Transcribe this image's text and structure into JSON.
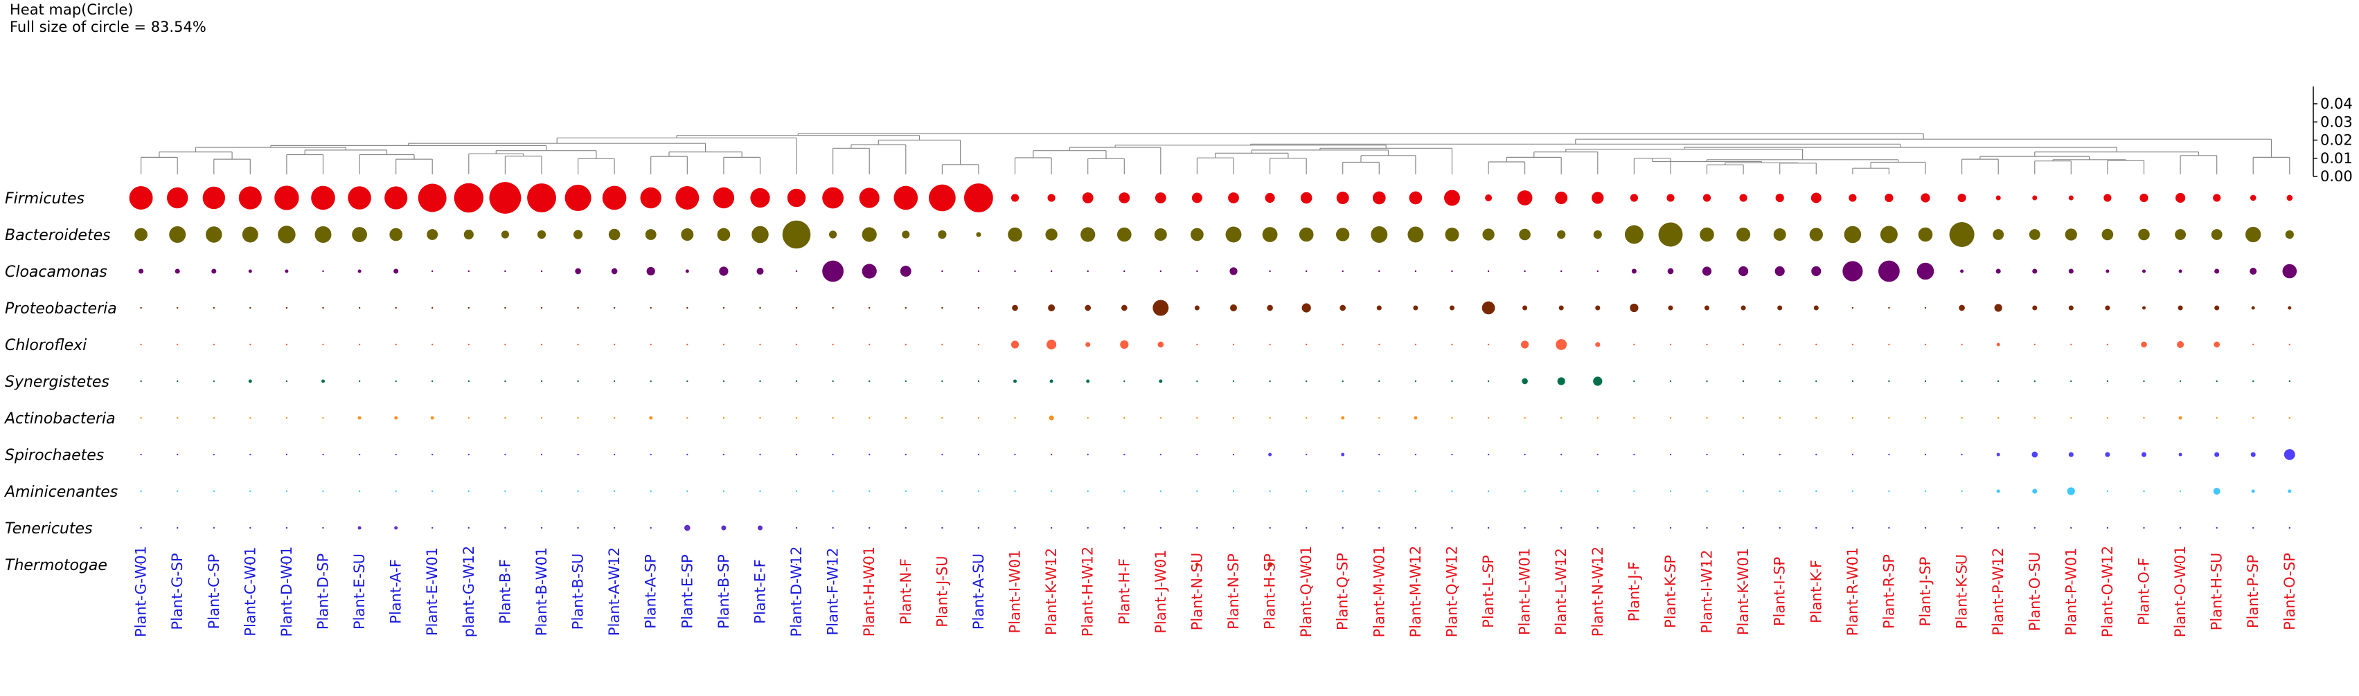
{
  "header": {
    "title": "Heat map(Circle)",
    "subtitle": "Full size of circle = 83.54%"
  },
  "chart_data": {
    "type": "heatmap",
    "encoding": "circle area proportional to relative abundance",
    "tree_axis": {
      "ticks": [
        "0.04",
        "0.03",
        "0.02",
        "0.01",
        "0.00"
      ],
      "values": [
        0.04,
        0.03,
        0.02,
        0.01,
        0.0
      ]
    },
    "phyla": [
      "Firmicutes",
      "Bacteroidetes",
      "Cloacamonas",
      "Proteobacteria",
      "Chloroflexi",
      "Synergistetes",
      "Actinobacteria",
      "Spirochaetes",
      "Aminicenantes",
      "Tenericutes",
      "Thermotogae"
    ],
    "phylum_colors": [
      "#e8000b",
      "#6b6200",
      "#6b006e",
      "#7a2800",
      "#ff6040",
      "#00704a",
      "#ff9020",
      "#5040ff",
      "#40c8ff",
      "#6030c8",
      "#c83010"
    ],
    "samples": [
      "Plant-G-W01",
      "Plant-G-SP",
      "Plant-C-SP",
      "Plant-C-W01",
      "Plant-D-W01",
      "Plant-D-SP",
      "Plant-E-SU",
      "Plant-A-F",
      "Plant-E-W01",
      "plant-G-W12",
      "Plant-B-F",
      "Plant-B-W01",
      "Plant-B-SU",
      "Plant-A-W12",
      "Plant-A-SP",
      "Plant-E-SP",
      "Plant-B-SP",
      "Plant-E-F",
      "Plant-D-W12",
      "Plant-F-W12",
      "Plant-H-W01",
      "Plant-N-F",
      "Plant-J-SU",
      "Plant-A-SU",
      "Plant-I-W01",
      "Plant-K-W12",
      "Plant-H-W12",
      "Plant-H-F",
      "Plant-J-W01",
      "Plant-N-SU",
      "Plant-N-SP",
      "Plant-H-SP",
      "Plant-Q-W01",
      "Plant-Q-SP",
      "Plant-M-W01",
      "Plant-M-W12",
      "Plant-Q-W12",
      "Plant-L-SP",
      "Plant-L-W01",
      "Plant-L-W12",
      "Plant-N-W12",
      "Plant-J-F",
      "Plant-K-SP",
      "Plant-I-W12",
      "Plant-K-W01",
      "Plant-I-SP",
      "Plant-K-F",
      "Plant-R-W01",
      "Plant-R-SP",
      "Plant-J-SP",
      "Plant-K-SU",
      "Plant-P-W12",
      "Plant-O-SU",
      "Plant-P-W01",
      "Plant-O-W12",
      "Plant-O-F",
      "Plant-O-W01",
      "Plant-H-SU",
      "Plant-P-SP",
      "Plant-O-SP"
    ],
    "sample_groups": [
      "blue",
      "blue",
      "blue",
      "blue",
      "blue",
      "blue",
      "blue",
      "blue",
      "blue",
      "blue",
      "blue",
      "blue",
      "blue",
      "blue",
      "blue",
      "blue",
      "blue",
      "blue",
      "blue",
      "blue",
      "red",
      "red",
      "red",
      "blue",
      "red",
      "red",
      "red",
      "red",
      "red",
      "red",
      "red",
      "red",
      "red",
      "red",
      "red",
      "red",
      "red",
      "red",
      "red",
      "red",
      "red",
      "red",
      "red",
      "red",
      "red",
      "red",
      "red",
      "red",
      "red",
      "red",
      "red",
      "red",
      "red",
      "red",
      "red",
      "red",
      "red",
      "red",
      "red",
      "red"
    ],
    "group_colors": {
      "blue": "#1a1adc",
      "red": "#e6141e"
    },
    "values": [
      [
        46,
        37,
        42,
        44,
        50,
        48,
        45,
        44,
        67,
        72,
        84,
        70,
        58,
        48,
        37,
        46,
        37,
        32,
        28,
        38,
        34,
        48,
        60,
        70,
        5,
        5,
        10,
        10,
        10,
        9,
        10,
        8,
        11,
        13,
        14,
        14,
        21,
        4,
        19,
        13,
        12,
        5,
        5,
        5,
        5,
        6,
        9,
        5,
        6,
        7,
        6,
        2,
        2,
        2,
        5,
        6,
        8,
        5,
        3,
        3
      ],
      [
        14,
        23,
        22,
        21,
        26,
        23,
        19,
        14,
        10,
        8,
        5,
        6,
        7,
        11,
        10,
        13,
        14,
        24,
        66,
        5,
        18,
        5,
        6,
        2,
        17,
        12,
        18,
        17,
        13,
        14,
        21,
        19,
        17,
        15,
        23,
        21,
        16,
        12,
        11,
        6,
        6,
        29,
        49,
        17,
        16,
        13,
        15,
        24,
        25,
        17,
        52,
        10,
        10,
        12,
        11,
        11,
        10,
        10,
        20,
        6
      ],
      [
        2,
        2,
        2,
        1,
        1,
        0,
        1,
        2,
        0,
        0,
        0,
        0,
        3,
        3,
        6,
        1,
        7,
        4,
        0,
        38,
        18,
        10,
        0,
        0,
        0,
        0,
        0,
        0,
        0,
        0,
        5,
        0,
        0,
        0,
        0,
        0,
        0,
        0,
        0,
        0,
        0,
        2,
        3,
        7,
        8,
        8,
        8,
        34,
        38,
        24,
        1,
        2,
        2,
        2,
        1,
        1,
        1,
        2,
        4,
        17
      ],
      [
        0,
        0,
        0,
        0,
        0,
        0,
        0,
        0,
        0,
        0,
        0,
        0,
        0,
        0,
        0,
        0,
        0,
        0,
        0,
        0,
        0,
        0,
        0,
        0,
        3,
        4,
        3,
        3,
        21,
        2,
        4,
        3,
        7,
        3,
        2,
        2,
        2,
        14,
        2,
        2,
        2,
        6,
        2,
        2,
        2,
        2,
        2,
        0,
        0,
        0,
        3,
        5,
        2,
        2,
        2,
        1,
        2,
        2,
        1,
        1
      ],
      [
        0,
        0,
        0,
        0,
        0,
        0,
        0,
        0,
        0,
        0,
        0,
        0,
        0,
        0,
        0,
        0,
        0,
        0,
        0,
        0,
        0,
        0,
        0,
        0,
        5,
        8,
        2,
        6,
        3,
        0,
        0,
        0,
        0,
        0,
        0,
        0,
        0,
        0,
        5,
        10,
        2,
        0,
        0,
        0,
        0,
        0,
        0,
        0,
        0,
        0,
        0,
        1,
        0,
        0,
        0,
        3,
        4,
        3,
        0,
        0
      ],
      [
        0,
        0,
        0,
        1,
        0,
        1,
        0,
        0,
        0,
        0,
        0,
        0,
        0,
        0,
        0,
        0,
        0,
        0,
        0,
        0,
        0,
        0,
        0,
        0,
        1,
        1,
        1,
        0,
        1,
        0,
        0,
        0,
        0,
        0,
        0,
        0,
        0,
        0,
        3,
        5,
        7,
        0,
        0,
        0,
        0,
        0,
        0,
        0,
        0,
        0,
        0,
        0,
        0,
        0,
        0,
        0,
        0,
        0,
        0,
        0
      ],
      [
        0,
        0,
        0,
        0,
        0,
        0,
        1,
        1,
        1,
        0,
        0,
        0,
        0,
        0,
        1,
        0,
        0,
        0,
        0,
        0,
        0,
        0,
        0,
        0,
        0,
        2,
        0,
        0,
        0,
        0,
        0,
        0,
        0,
        1,
        0,
        1,
        0,
        0,
        0,
        0,
        0,
        0,
        0,
        0,
        0,
        0,
        0,
        0,
        0,
        0,
        0,
        0,
        0,
        0,
        0,
        0,
        1,
        0,
        0,
        0
      ],
      [
        0,
        0,
        0,
        0,
        0,
        0,
        0,
        0,
        0,
        0,
        0,
        0,
        0,
        0,
        0,
        0,
        0,
        0,
        0,
        0,
        0,
        0,
        0,
        0,
        0,
        0,
        0,
        0,
        0,
        0,
        0,
        1,
        0,
        1,
        0,
        0,
        0,
        0,
        0,
        0,
        0,
        0,
        0,
        0,
        0,
        0,
        0,
        0,
        0,
        0,
        0,
        1,
        3,
        2,
        2,
        2,
        1,
        2,
        2,
        10
      ],
      [
        0,
        0,
        0,
        0,
        0,
        0,
        0,
        0,
        0,
        0,
        0,
        0,
        0,
        0,
        0,
        0,
        0,
        0,
        0,
        0,
        0,
        0,
        0,
        0,
        0,
        0,
        0,
        0,
        0,
        0,
        0,
        0,
        0,
        0,
        0,
        0,
        0,
        0,
        0,
        0,
        0,
        0,
        0,
        0,
        0,
        0,
        0,
        0,
        0,
        0,
        0,
        1,
        2,
        5,
        0,
        0,
        0,
        4,
        1,
        1
      ],
      [
        0,
        0,
        0,
        0,
        0,
        0,
        1,
        1,
        0,
        0,
        0,
        0,
        0,
        0,
        0,
        3,
        2,
        2,
        0,
        0,
        0,
        0,
        0,
        0,
        0,
        0,
        0,
        0,
        0,
        0,
        0,
        0,
        0,
        0,
        0,
        0,
        0,
        0,
        0,
        0,
        0,
        0,
        0,
        0,
        0,
        0,
        0,
        0,
        0,
        0,
        0,
        0,
        0,
        0,
        0,
        0,
        0,
        0,
        0,
        0
      ],
      [
        0,
        0,
        0,
        0,
        0,
        0,
        0,
        0,
        0,
        0,
        0,
        0,
        0,
        0,
        0,
        0,
        0,
        0,
        0,
        0,
        0,
        0,
        0,
        0,
        0,
        0,
        0,
        0,
        0,
        1,
        0,
        2,
        0,
        0,
        0,
        0,
        0,
        0,
        0,
        0,
        0,
        0,
        0,
        0,
        0,
        0,
        0,
        0,
        0,
        0,
        0,
        0,
        0,
        0,
        0,
        0,
        0,
        0,
        0,
        0
      ]
    ]
  }
}
